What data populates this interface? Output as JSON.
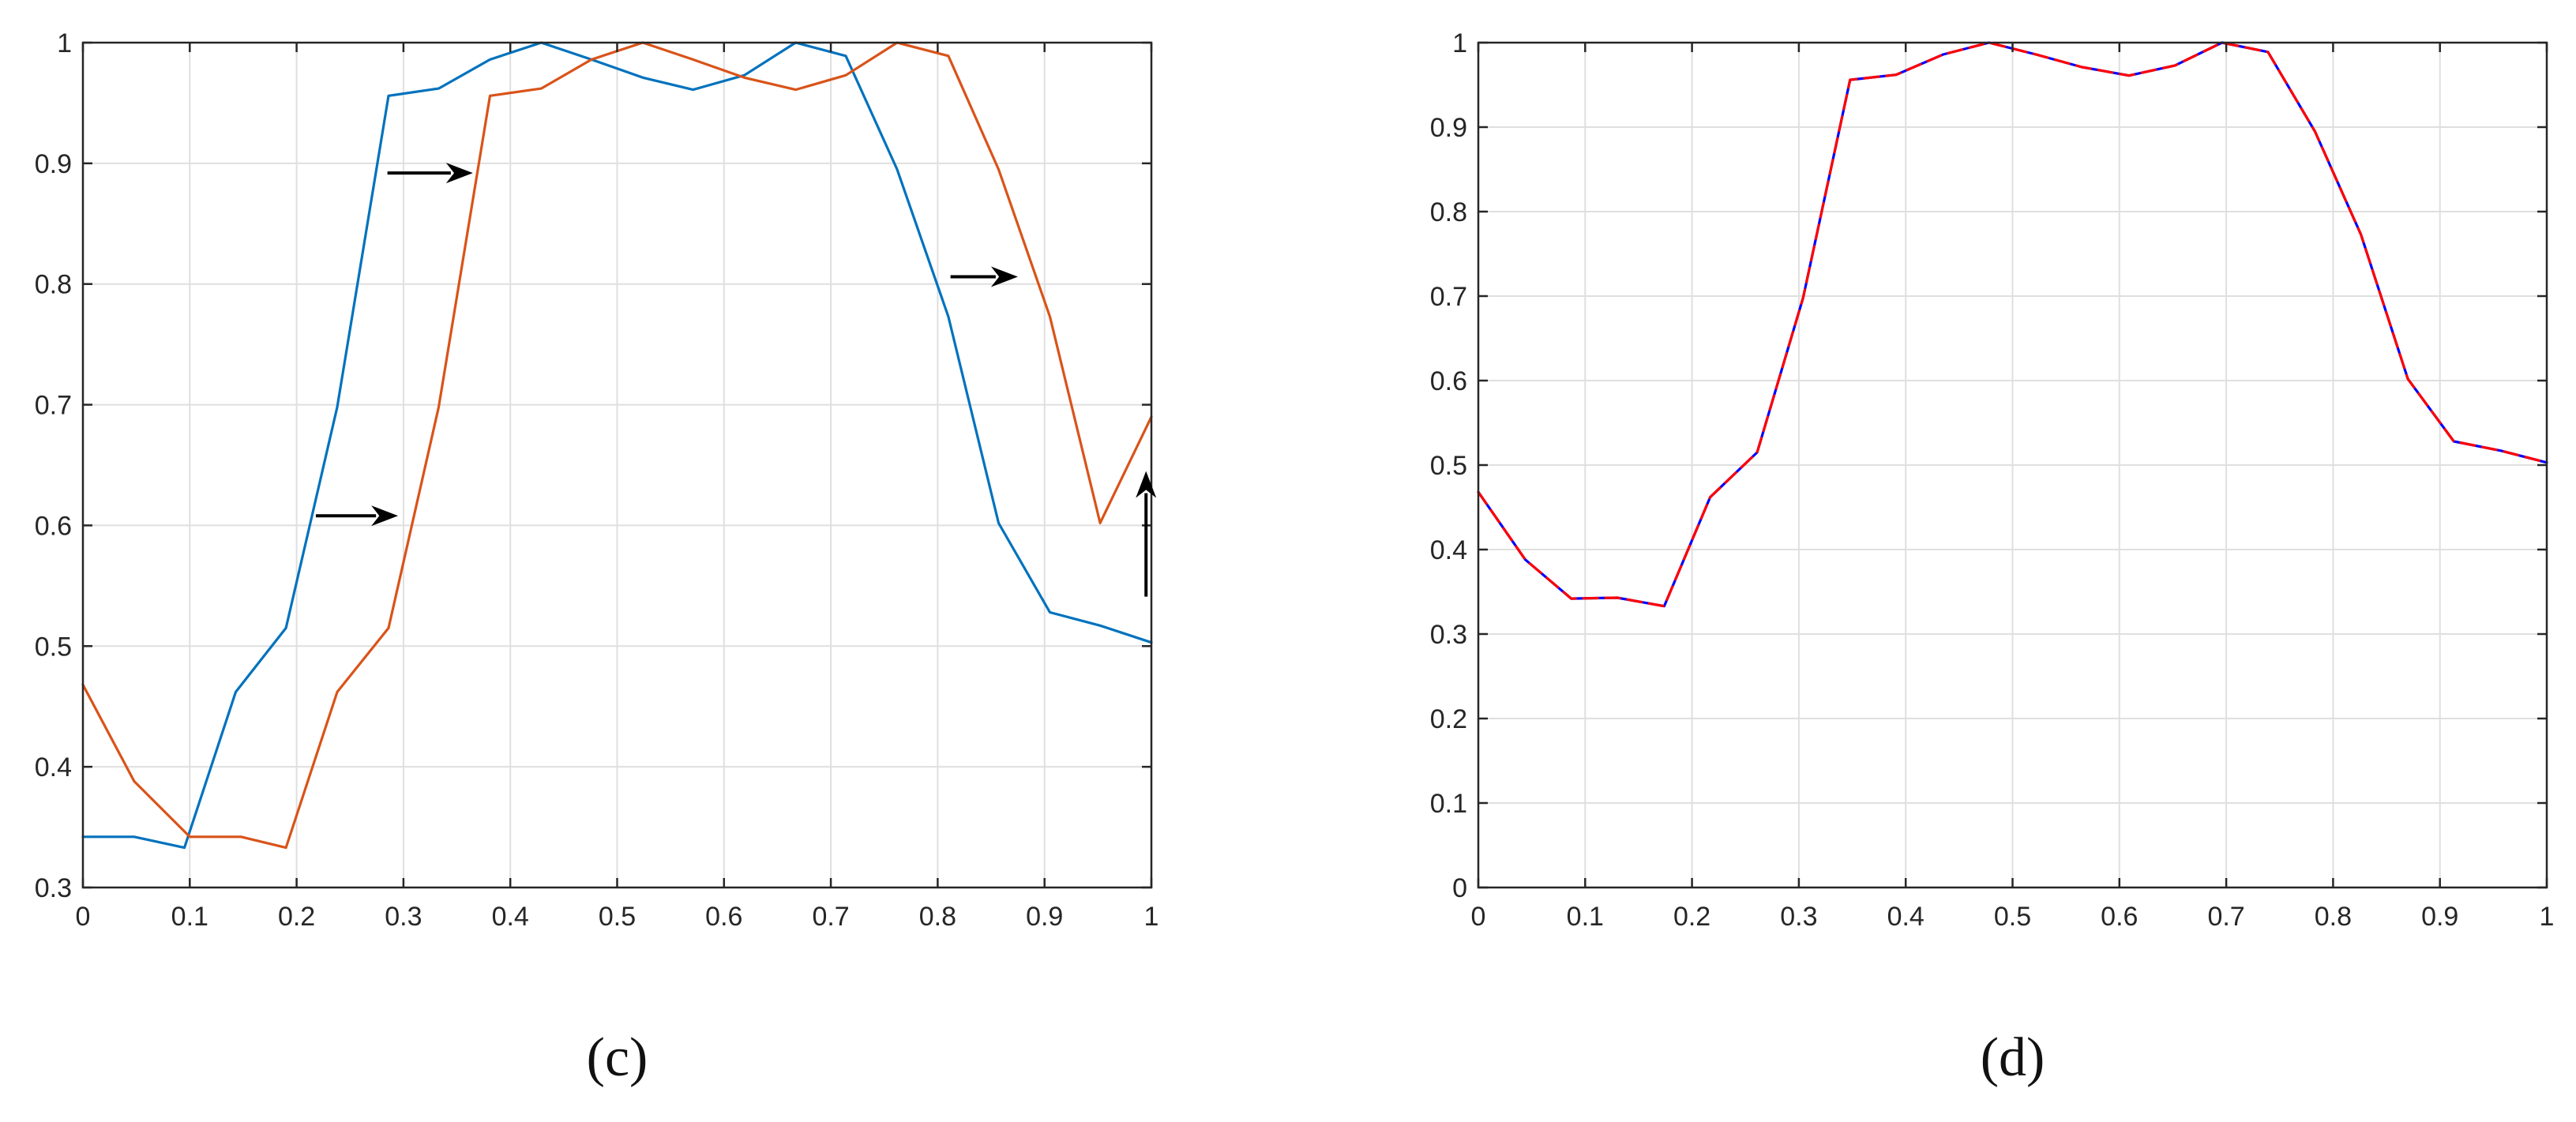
{
  "chart_data": [
    {
      "type": "line",
      "panel_label": "(c)",
      "xlim": [
        0,
        1
      ],
      "ylim": [
        0.3,
        1
      ],
      "grid": true,
      "x_ticks": [
        0,
        0.1,
        0.2,
        0.3,
        0.4,
        0.5,
        0.6,
        0.7,
        0.8,
        0.9,
        1
      ],
      "x_tick_labels": [
        "0",
        "0.1",
        "0.2",
        "0.3",
        "0.4",
        "0.5",
        "0.6",
        "0.7",
        "0.8",
        "0.9",
        "1"
      ],
      "y_ticks": [
        0.3,
        0.4,
        0.5,
        0.6,
        0.7,
        0.8,
        0.9,
        1
      ],
      "y_tick_labels": [
        "0.3",
        "0.4",
        "0.5",
        "0.6",
        "0.7",
        "0.8",
        "0.9",
        "1"
      ],
      "series": [
        {
          "color": "#0072BD",
          "x": [
            0,
            0.048,
            0.095,
            0.143,
            0.19,
            0.238,
            0.286,
            0.333,
            0.381,
            0.429,
            0.476,
            0.524,
            0.571,
            0.619,
            0.667,
            0.714,
            0.762,
            0.81,
            0.857,
            0.905,
            0.952,
            1.0
          ],
          "y": [
            0.342,
            0.342,
            0.333,
            0.462,
            0.515,
            0.698,
            0.956,
            0.962,
            0.986,
            1.0,
            0.986,
            0.971,
            0.961,
            0.973,
            1.0,
            0.989,
            0.895,
            0.773,
            0.602,
            0.528,
            0.517,
            0.503
          ]
        },
        {
          "color": "#D95319",
          "x": [
            0,
            0.048,
            0.1,
            0.148,
            0.19,
            0.238,
            0.286,
            0.333,
            0.381,
            0.429,
            0.476,
            0.524,
            0.571,
            0.619,
            0.667,
            0.714,
            0.762,
            0.81,
            0.857,
            0.905,
            0.952,
            1.0
          ],
          "y": [
            0.468,
            0.388,
            0.342,
            0.342,
            0.333,
            0.462,
            0.515,
            0.698,
            0.956,
            0.962,
            0.986,
            1.0,
            0.986,
            0.971,
            0.961,
            0.973,
            1.0,
            0.989,
            0.895,
            0.773,
            0.602,
            0.69
          ]
        }
      ],
      "annotations": [
        {
          "type": "arrow",
          "direction": "right",
          "from": [
            0.285,
            0.892
          ],
          "to": [
            0.365,
            0.892
          ]
        },
        {
          "type": "arrow",
          "direction": "right",
          "from": [
            0.218,
            0.608
          ],
          "to": [
            0.295,
            0.608
          ]
        },
        {
          "type": "arrow",
          "direction": "right",
          "from": [
            0.812,
            0.806
          ],
          "to": [
            0.875,
            0.806
          ]
        },
        {
          "type": "arrow",
          "direction": "up",
          "from": [
            0.995,
            0.541
          ],
          "to": [
            0.995,
            0.645
          ]
        }
      ]
    },
    {
      "type": "line",
      "panel_label": "(d)",
      "xlim": [
        0,
        1
      ],
      "ylim": [
        0,
        1
      ],
      "grid": true,
      "x_ticks": [
        0,
        0.1,
        0.2,
        0.3,
        0.4,
        0.5,
        0.6,
        0.7,
        0.8,
        0.9,
        1
      ],
      "x_tick_labels": [
        "0",
        "0.1",
        "0.2",
        "0.3",
        "0.4",
        "0.5",
        "0.6",
        "0.7",
        "0.8",
        "0.9",
        "1"
      ],
      "y_ticks": [
        0,
        0.1,
        0.2,
        0.3,
        0.4,
        0.5,
        0.6,
        0.7,
        0.8,
        0.9,
        1
      ],
      "y_tick_labels": [
        "0",
        "0.1",
        "0.2",
        "0.3",
        "0.4",
        "0.5",
        "0.6",
        "0.7",
        "0.8",
        "0.9",
        "1"
      ],
      "series": [
        {
          "color": "#0000FF",
          "style": "solid",
          "x": [
            0,
            0.044,
            0.087,
            0.13,
            0.174,
            0.217,
            0.261,
            0.304,
            0.348,
            0.391,
            0.435,
            0.478,
            0.522,
            0.565,
            0.609,
            0.652,
            0.696,
            0.739,
            0.783,
            0.826,
            0.87,
            0.913,
            0.957,
            1.0
          ],
          "y": [
            0.468,
            0.388,
            0.342,
            0.343,
            0.333,
            0.462,
            0.515,
            0.698,
            0.956,
            0.962,
            0.986,
            1.0,
            0.986,
            0.971,
            0.961,
            0.973,
            1.0,
            0.989,
            0.895,
            0.773,
            0.602,
            0.528,
            0.517,
            0.503
          ]
        },
        {
          "color": "#FF0000",
          "style": "dashed",
          "x": [
            0,
            0.044,
            0.087,
            0.13,
            0.174,
            0.217,
            0.261,
            0.304,
            0.348,
            0.391,
            0.435,
            0.478,
            0.522,
            0.565,
            0.609,
            0.652,
            0.696,
            0.739,
            0.783,
            0.826,
            0.87,
            0.913,
            0.957,
            1.0
          ],
          "y": [
            0.468,
            0.388,
            0.342,
            0.343,
            0.333,
            0.462,
            0.515,
            0.698,
            0.956,
            0.962,
            0.986,
            1.0,
            0.986,
            0.971,
            0.961,
            0.973,
            1.0,
            0.989,
            0.895,
            0.773,
            0.602,
            0.528,
            0.517,
            0.503
          ]
        }
      ]
    }
  ]
}
